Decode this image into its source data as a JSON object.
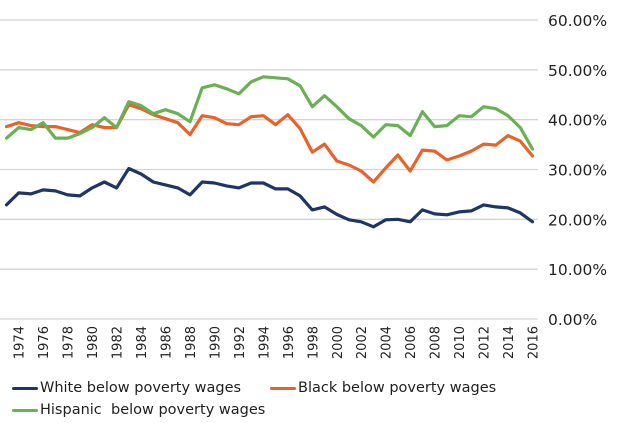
{
  "chart_data": {
    "type": "line",
    "title": "",
    "xlabel": "",
    "ylabel": "",
    "x": [
      1973,
      1974,
      1975,
      1976,
      1977,
      1978,
      1979,
      1980,
      1981,
      1982,
      1983,
      1984,
      1985,
      1986,
      1987,
      1988,
      1989,
      1990,
      1991,
      1992,
      1993,
      1994,
      1995,
      1996,
      1997,
      1998,
      1999,
      2000,
      2001,
      2002,
      2003,
      2004,
      2005,
      2006,
      2007,
      2008,
      2009,
      2010,
      2011,
      2012,
      2013,
      2014,
      2015,
      2016
    ],
    "x_tick_labels": [
      "1974",
      "1976",
      "1978",
      "1980",
      "1982",
      "1984",
      "1986",
      "1988",
      "1990",
      "1992",
      "1994",
      "1996",
      "1998",
      "2000",
      "2002",
      "2004",
      "2006",
      "2008",
      "2010",
      "2012",
      "2014",
      "2016"
    ],
    "y_tick_labels": [
      "0.00%",
      "10.00%",
      "20.00%",
      "30.00%",
      "40.00%",
      "50.00%",
      "60.00%"
    ],
    "ylim": [
      0,
      60
    ],
    "grid": true,
    "y_axis_side": "right",
    "legend_position": "bottom",
    "series": [
      {
        "name": "White below poverty wages",
        "color": "#1f3564",
        "values": [
          22.9,
          25.3,
          25.1,
          25.9,
          25.7,
          24.9,
          24.7,
          26.3,
          27.5,
          26.3,
          30.2,
          29.1,
          27.5,
          26.9,
          26.3,
          24.9,
          27.5,
          27.3,
          26.7,
          26.3,
          27.3,
          27.3,
          26.1,
          26.1,
          24.7,
          21.9,
          22.5,
          21.0,
          19.9,
          19.5,
          18.5,
          19.9,
          20.0,
          19.5,
          21.9,
          21.1,
          20.9,
          21.5,
          21.7,
          22.9,
          22.5,
          22.3,
          21.3,
          19.5
        ]
      },
      {
        "name": "Black below poverty wages",
        "color": "#e8622a",
        "values": [
          38.6,
          39.4,
          38.8,
          38.6,
          38.6,
          38.0,
          37.4,
          39.0,
          38.4,
          38.4,
          43.0,
          42.2,
          41.0,
          40.2,
          39.4,
          37.0,
          40.8,
          40.4,
          39.2,
          39.0,
          40.6,
          40.8,
          39.0,
          41.0,
          38.2,
          33.5,
          35.1,
          31.7,
          30.9,
          29.7,
          27.5,
          30.3,
          32.9,
          29.7,
          33.9,
          33.7,
          31.9,
          32.7,
          33.7,
          35.1,
          34.9,
          36.8,
          35.7,
          32.7
        ]
      },
      {
        "name": "Hispanic  below poverty wages",
        "color": "#6ab155",
        "values": [
          36.3,
          38.4,
          38.0,
          39.4,
          36.3,
          36.3,
          37.2,
          38.4,
          40.4,
          38.4,
          43.6,
          42.8,
          41.2,
          42.0,
          41.2,
          39.6,
          46.4,
          47.0,
          46.2,
          45.2,
          47.6,
          48.6,
          48.4,
          48.2,
          46.8,
          42.6,
          44.8,
          42.6,
          40.2,
          38.8,
          36.5,
          39.0,
          38.8,
          36.8,
          41.6,
          38.6,
          38.8,
          40.8,
          40.6,
          42.6,
          42.2,
          40.8,
          38.4,
          34.1
        ]
      }
    ]
  },
  "legend": {
    "items": [
      {
        "label": "White below poverty wages",
        "color": "#1f3564"
      },
      {
        "label": "Black below poverty wages",
        "color": "#e8622a"
      },
      {
        "label": "Hispanic  below poverty wages",
        "color": "#6ab155"
      }
    ]
  },
  "colors": {
    "gridline": "#d4d4d4",
    "text": "#222222"
  }
}
